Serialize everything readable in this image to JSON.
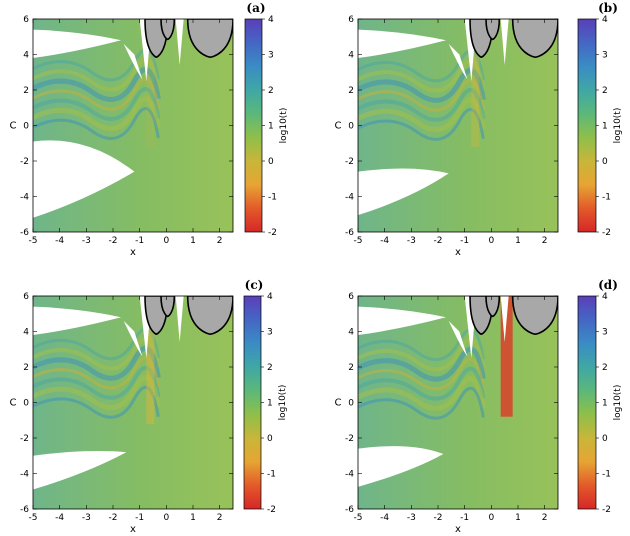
{
  "colors": {
    "colormap": [
      "#d62728",
      "#e35a2a",
      "#e6a533",
      "#c8b63a",
      "#8fbf4a",
      "#5bb87a",
      "#3fa7a5",
      "#3a8cc4",
      "#4566c4",
      "#5a3fb8"
    ],
    "region_fill": "#ffffff",
    "forbidden_fill": "#a8a8a8",
    "boundary_stroke": "#000000",
    "base_field": "#7fbf70"
  },
  "chart_data": [
    {
      "type": "heatmap",
      "panel_label": "(a)",
      "xlabel": "x",
      "ylabel": "C",
      "xlim": [
        -5,
        2.5
      ],
      "ylim": [
        -6,
        6
      ],
      "xticks": [
        "-5",
        "-4",
        "-3",
        "-2",
        "-1",
        "0",
        "1",
        "2"
      ],
      "yticks": [
        "-6",
        "-4",
        "-2",
        "0",
        "2",
        "4",
        "6"
      ],
      "colorbar": {
        "label": "log10(t)",
        "range": [
          -2,
          4
        ],
        "ticks": [
          "-2",
          "-1",
          "0",
          "1",
          "2",
          "3",
          "4"
        ]
      }
    },
    {
      "type": "heatmap",
      "panel_label": "(b)",
      "xlabel": "x",
      "ylabel": "C",
      "xlim": [
        -5,
        2.5
      ],
      "ylim": [
        -6,
        6
      ],
      "xticks": [
        "-5",
        "-4",
        "-3",
        "-2",
        "-1",
        "0",
        "1",
        "2"
      ],
      "yticks": [
        "-6",
        "-4",
        "-2",
        "0",
        "2",
        "4",
        "6"
      ],
      "colorbar": {
        "label": "log10(t)",
        "range": [
          -2,
          4
        ],
        "ticks": [
          "-2",
          "-1",
          "0",
          "1",
          "2",
          "3",
          "4"
        ]
      }
    },
    {
      "type": "heatmap",
      "panel_label": "(c)",
      "xlabel": "x",
      "ylabel": "C",
      "xlim": [
        -5,
        2.5
      ],
      "ylim": [
        -6,
        6
      ],
      "xticks": [
        "-5",
        "-4",
        "-3",
        "-2",
        "-1",
        "0",
        "1",
        "2"
      ],
      "yticks": [
        "-6",
        "-4",
        "-2",
        "0",
        "2",
        "4",
        "6"
      ],
      "colorbar": {
        "label": "log10(t)",
        "range": [
          -2,
          4
        ],
        "ticks": [
          "-2",
          "-1",
          "0",
          "1",
          "2",
          "3",
          "4"
        ]
      }
    },
    {
      "type": "heatmap",
      "panel_label": "(d)",
      "xlabel": "x",
      "ylabel": "C",
      "xlim": [
        -5,
        2.5
      ],
      "ylim": [
        -6,
        6
      ],
      "xticks": [
        "-5",
        "-4",
        "-3",
        "-2",
        "-1",
        "0",
        "1",
        "2"
      ],
      "yticks": [
        "-6",
        "-4",
        "-2",
        "0",
        "2",
        "4",
        "6"
      ],
      "colorbar": {
        "label": "log10(t)",
        "range": [
          -2,
          4
        ],
        "ticks": [
          "-2",
          "-1",
          "0",
          "1",
          "2",
          "3",
          "4"
        ]
      }
    }
  ]
}
